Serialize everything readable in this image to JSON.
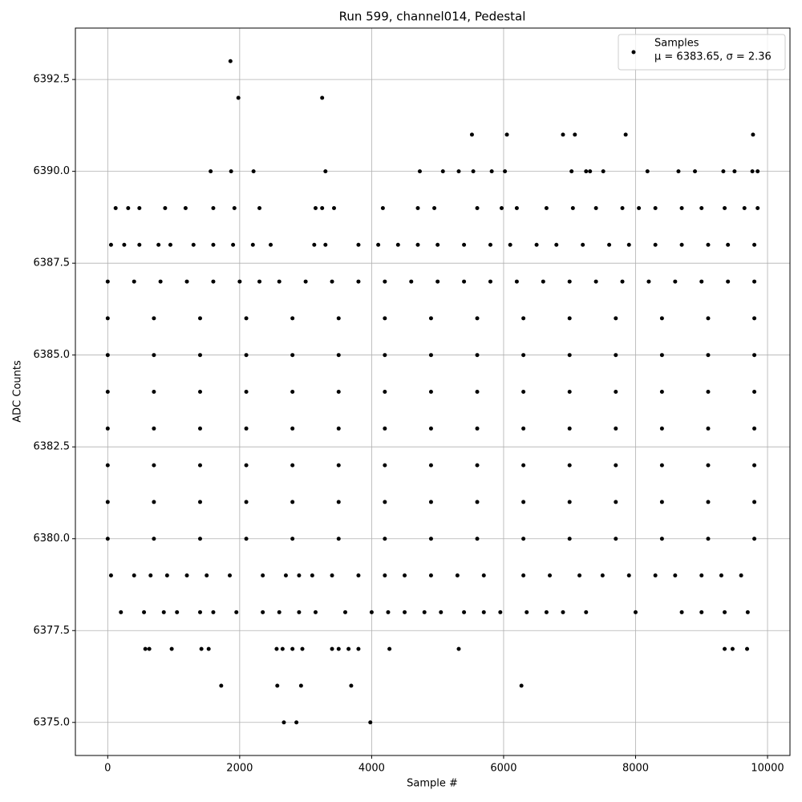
{
  "chart_data": {
    "type": "scatter",
    "title": "Run 599, channel014, Pedestal",
    "xlabel": "Sample #",
    "ylabel": "ADC Counts",
    "xlim": [
      -490,
      10340
    ],
    "ylim": [
      6374.1,
      6393.9
    ],
    "xticks": [
      0,
      2000,
      4000,
      6000,
      8000,
      10000
    ],
    "yticks": [
      {
        "value": 6375,
        "label": "6375.0"
      },
      6377.5,
      {
        "value": 6380,
        "label": "6380.0"
      },
      6382.5,
      {
        "value": 6385,
        "label": "6385.0"
      },
      6387.5,
      {
        "value": 6390,
        "label": "6390.0"
      },
      6392.5
    ],
    "grid": true,
    "legend": "upper right",
    "legend_note": "μ = 6383.65, σ = 2.36",
    "series": [
      {
        "name": "Samples",
        "color": "#000000",
        "x": [
          1860,
          1980,
          3250,
          5520,
          6050,
          6900,
          7080,
          7850,
          9780,
          1560,
          1870,
          2210,
          3300,
          4730,
          5080,
          5320,
          5540,
          5820,
          6020,
          7030,
          7250,
          7310,
          7510,
          8180,
          8650,
          8900,
          9330,
          9500,
          9770,
          9850,
          120,
          310,
          480,
          870,
          1180,
          1600,
          1920,
          2300,
          3150,
          3250,
          3430,
          4170,
          4700,
          4950,
          5600,
          5970,
          6200,
          6650,
          7050,
          7400,
          7800,
          8050,
          8300,
          8700,
          9000,
          9350,
          9650,
          9850,
          50,
          250,
          480,
          770,
          950,
          1300,
          1600,
          1900,
          2200,
          2470,
          3130,
          3300,
          3800,
          4100,
          4400,
          4700,
          5000,
          5400,
          5800,
          6100,
          6500,
          6800,
          7200,
          7600,
          7900,
          8300,
          8700,
          9100,
          9400,
          9800,
          0,
          400,
          800,
          1200,
          1600,
          2000,
          2300,
          2600,
          3000,
          3400,
          3800,
          4200,
          4600,
          5000,
          5400,
          5800,
          6200,
          6600,
          7000,
          7400,
          7800,
          8200,
          8600,
          9000,
          9400,
          9800,
          0,
          700,
          1400,
          2100,
          2800,
          3500,
          4200,
          4900,
          5600,
          6300,
          7000,
          7700,
          8400,
          9100,
          9800,
          0,
          700,
          1400,
          2100,
          2800,
          3500,
          4200,
          4900,
          5600,
          6300,
          7000,
          7700,
          8400,
          9100,
          9800,
          0,
          700,
          1400,
          2100,
          2800,
          3500,
          4200,
          4900,
          5600,
          6300,
          7000,
          7700,
          8400,
          9100,
          9800,
          0,
          700,
          1400,
          2100,
          2800,
          3500,
          4200,
          4900,
          5600,
          6300,
          7000,
          7700,
          8400,
          9100,
          9800,
          0,
          700,
          1400,
          2100,
          2800,
          3500,
          4200,
          4900,
          5600,
          6300,
          7000,
          7700,
          8400,
          9100,
          9800,
          0,
          700,
          1400,
          2100,
          2800,
          3500,
          4200,
          4900,
          5600,
          6300,
          7000,
          7700,
          8400,
          9100,
          9800,
          0,
          700,
          1400,
          2100,
          2800,
          3500,
          4200,
          4900,
          5600,
          6300,
          7000,
          7700,
          8400,
          9100,
          9800,
          50,
          400,
          650,
          900,
          1200,
          1500,
          1850,
          2350,
          2700,
          2900,
          3100,
          3400,
          3800,
          4200,
          4500,
          4900,
          5300,
          5700,
          6300,
          6700,
          7150,
          7500,
          7900,
          8300,
          8600,
          9000,
          9300,
          9600,
          200,
          550,
          850,
          1050,
          1400,
          1600,
          1950,
          2350,
          2600,
          2900,
          3150,
          3600,
          4000,
          4250,
          4500,
          4800,
          5050,
          5400,
          5700,
          5950,
          6350,
          6650,
          6900,
          7250,
          8000,
          8700,
          9000,
          9350,
          9700,
          570,
          630,
          970,
          1420,
          1530,
          2560,
          2650,
          2800,
          2950,
          3400,
          3500,
          3650,
          3800,
          4270,
          5320,
          9350,
          9470,
          9690,
          1720,
          2570,
          2930,
          3690,
          6270,
          2670,
          2860,
          3980
        ],
        "values": [
          6393,
          6392,
          6392,
          6391,
          6391,
          6391,
          6391,
          6391,
          6391,
          6390,
          6390,
          6390,
          6390,
          6390,
          6390,
          6390,
          6390,
          6390,
          6390,
          6390,
          6390,
          6390,
          6390,
          6390,
          6390,
          6390,
          6390,
          6390,
          6390,
          6390,
          6389,
          6389,
          6389,
          6389,
          6389,
          6389,
          6389,
          6389,
          6389,
          6389,
          6389,
          6389,
          6389,
          6389,
          6389,
          6389,
          6389,
          6389,
          6389,
          6389,
          6389,
          6389,
          6389,
          6389,
          6389,
          6389,
          6389,
          6389,
          6388,
          6388,
          6388,
          6388,
          6388,
          6388,
          6388,
          6388,
          6388,
          6388,
          6388,
          6388,
          6388,
          6388,
          6388,
          6388,
          6388,
          6388,
          6388,
          6388,
          6388,
          6388,
          6388,
          6388,
          6388,
          6388,
          6388,
          6388,
          6388,
          6388,
          6387,
          6387,
          6387,
          6387,
          6387,
          6387,
          6387,
          6387,
          6387,
          6387,
          6387,
          6387,
          6387,
          6387,
          6387,
          6387,
          6387,
          6387,
          6387,
          6387,
          6387,
          6387,
          6387,
          6387,
          6387,
          6387,
          6386,
          6386,
          6386,
          6386,
          6386,
          6386,
          6386,
          6386,
          6386,
          6386,
          6386,
          6386,
          6386,
          6386,
          6386,
          6385,
          6385,
          6385,
          6385,
          6385,
          6385,
          6385,
          6385,
          6385,
          6385,
          6385,
          6385,
          6385,
          6385,
          6385,
          6384,
          6384,
          6384,
          6384,
          6384,
          6384,
          6384,
          6384,
          6384,
          6384,
          6384,
          6384,
          6384,
          6384,
          6384,
          6383,
          6383,
          6383,
          6383,
          6383,
          6383,
          6383,
          6383,
          6383,
          6383,
          6383,
          6383,
          6383,
          6383,
          6383,
          6382,
          6382,
          6382,
          6382,
          6382,
          6382,
          6382,
          6382,
          6382,
          6382,
          6382,
          6382,
          6382,
          6382,
          6382,
          6381,
          6381,
          6381,
          6381,
          6381,
          6381,
          6381,
          6381,
          6381,
          6381,
          6381,
          6381,
          6381,
          6381,
          6381,
          6380,
          6380,
          6380,
          6380,
          6380,
          6380,
          6380,
          6380,
          6380,
          6380,
          6380,
          6380,
          6380,
          6380,
          6380,
          6379,
          6379,
          6379,
          6379,
          6379,
          6379,
          6379,
          6379,
          6379,
          6379,
          6379,
          6379,
          6379,
          6379,
          6379,
          6379,
          6379,
          6379,
          6379,
          6379,
          6379,
          6379,
          6379,
          6379,
          6379,
          6379,
          6379,
          6379,
          6378,
          6378,
          6378,
          6378,
          6378,
          6378,
          6378,
          6378,
          6378,
          6378,
          6378,
          6378,
          6378,
          6378,
          6378,
          6378,
          6378,
          6378,
          6378,
          6378,
          6378,
          6378,
          6378,
          6378,
          6378,
          6378,
          6378,
          6378,
          6378,
          6377,
          6377,
          6377,
          6377,
          6377,
          6377,
          6377,
          6377,
          6377,
          6377,
          6377,
          6377,
          6377,
          6377,
          6377,
          6377,
          6377,
          6377,
          6376,
          6376,
          6376,
          6376,
          6376,
          6375,
          6375,
          6375
        ]
      }
    ]
  }
}
